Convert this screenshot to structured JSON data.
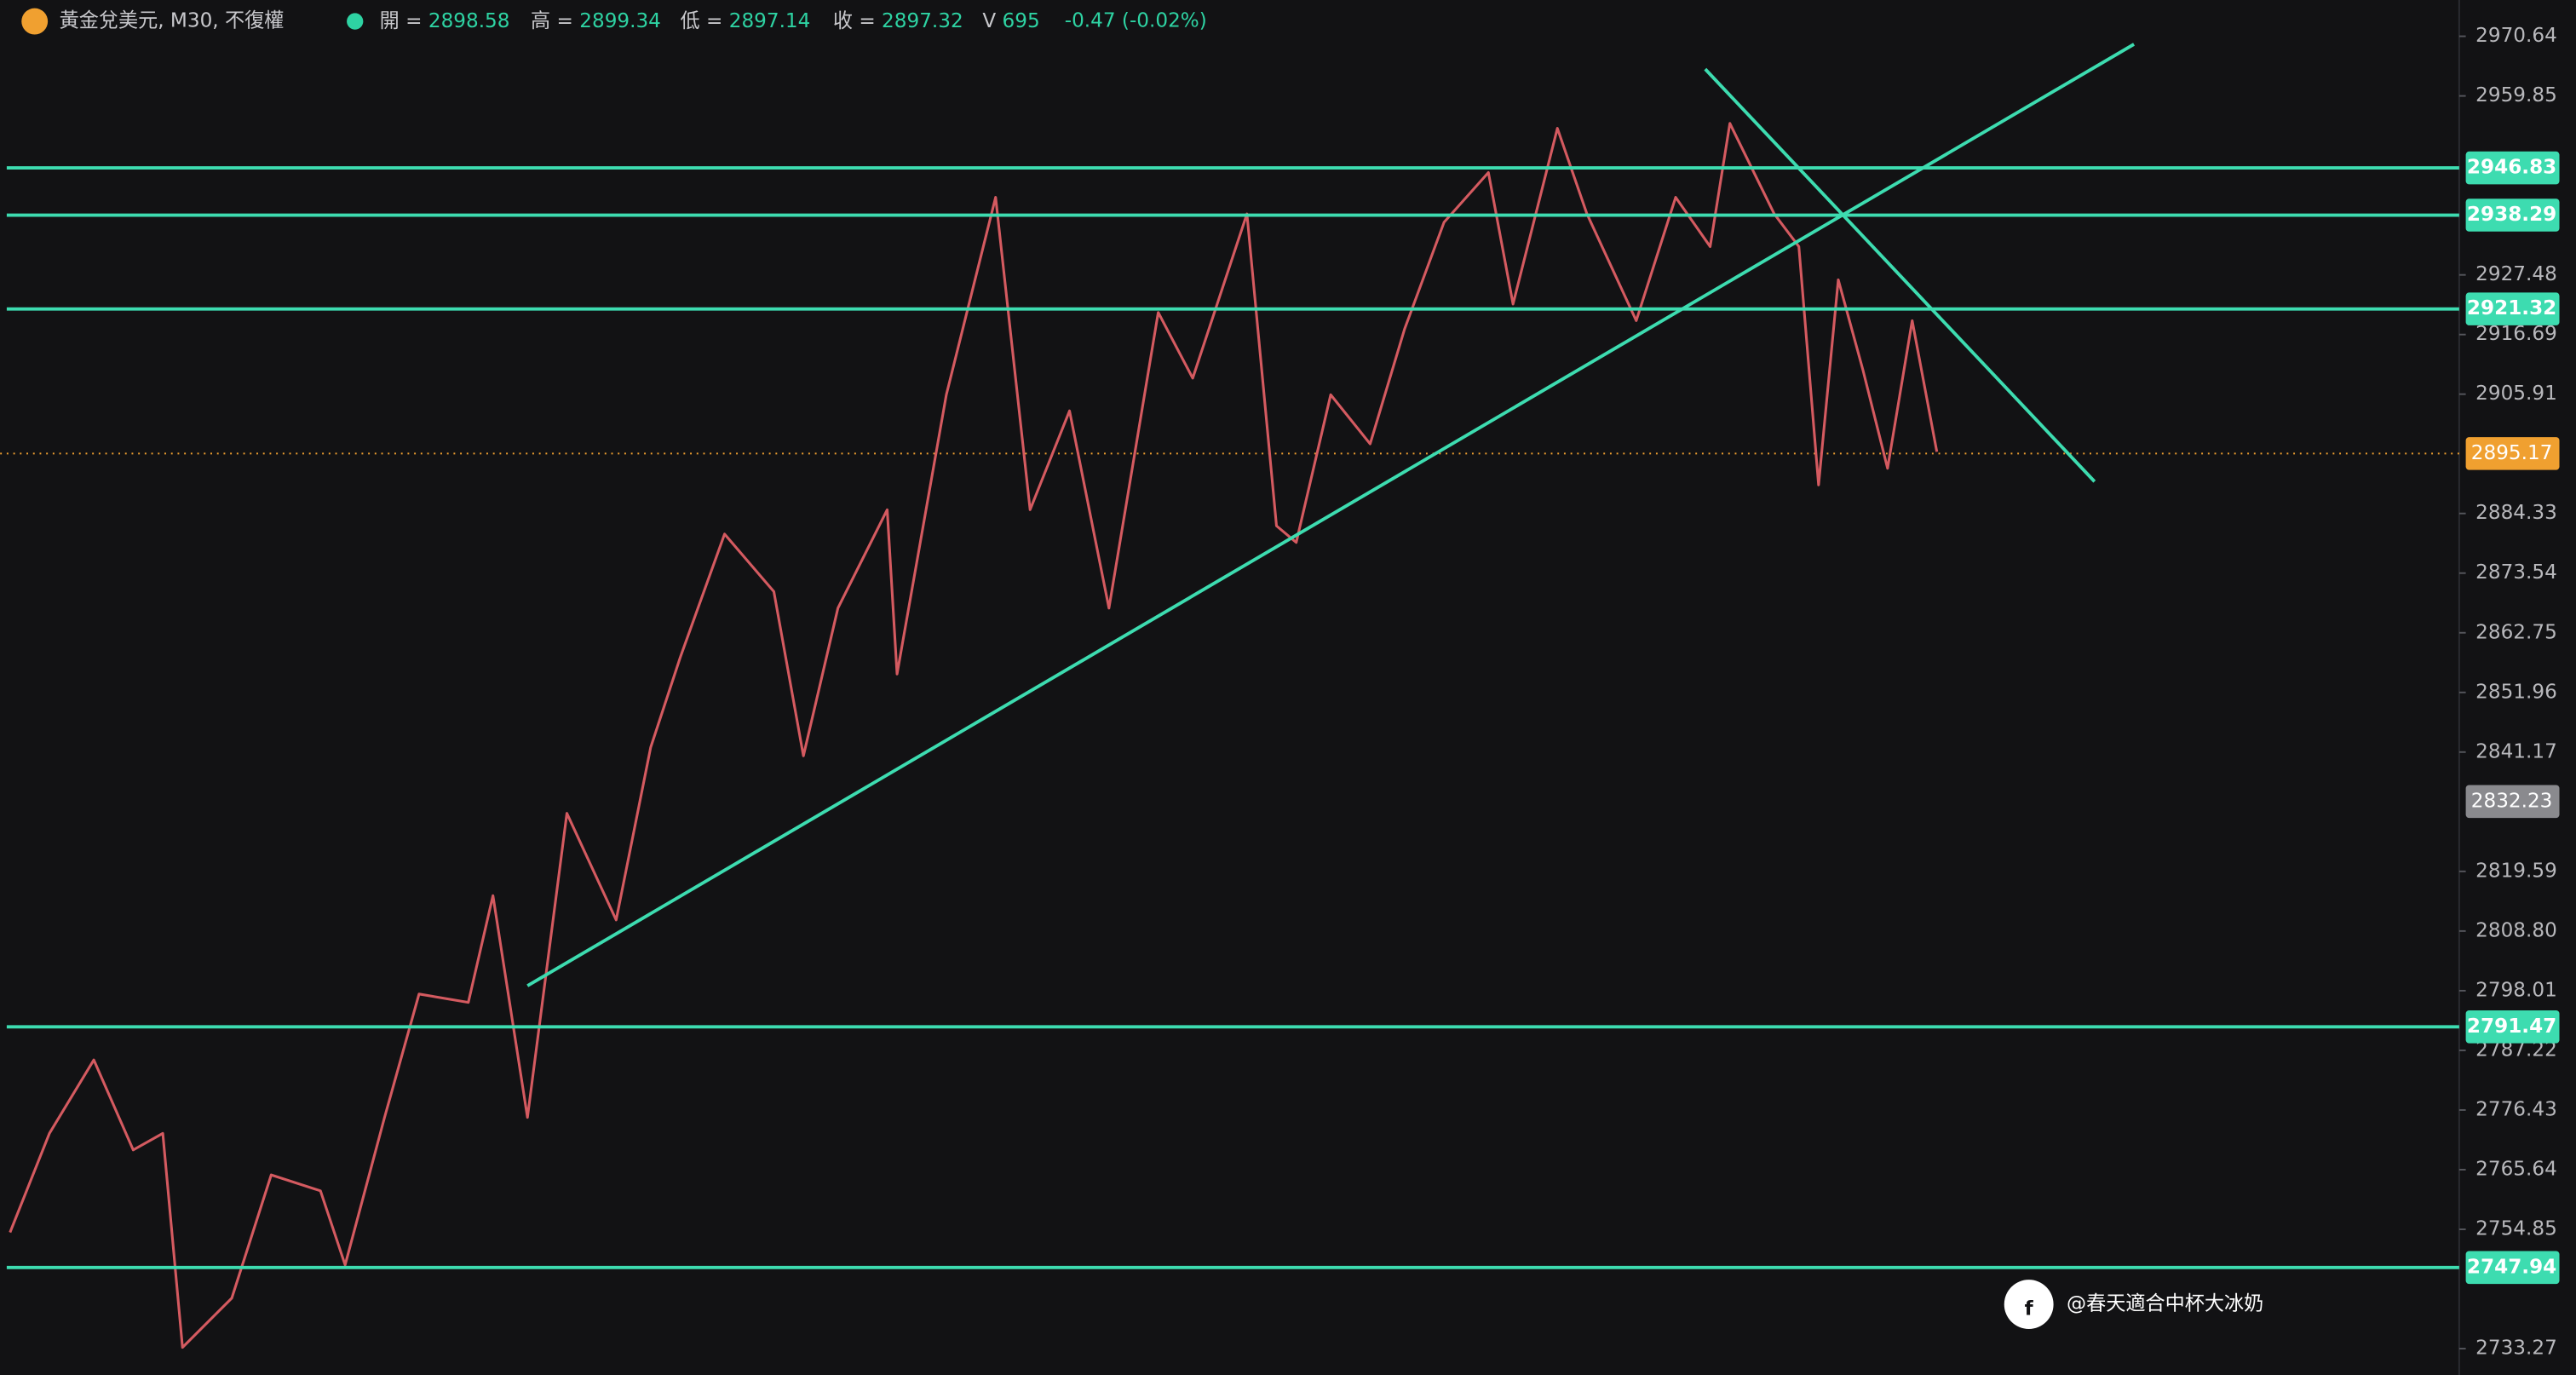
{
  "chart_data": {
    "type": "line",
    "symbol": "黃金兌美元, M30, 不復權",
    "open_label": "開 =",
    "open": 2898.58,
    "high_label": "高 =",
    "high": 2899.34,
    "low_label": "低 =",
    "low": 2897.14,
    "close_label": "收 =",
    "close": 2897.32,
    "volume_label": "V",
    "volume": 695,
    "change": "-0.47 (-0.02%)",
    "watermark": "@春天適合中杯大冰奶",
    "x": [
      2,
      10,
      19,
      27,
      33,
      37,
      47,
      55,
      65,
      70,
      78,
      85,
      95,
      100,
      107,
      115,
      125,
      132,
      138,
      147,
      157,
      163,
      170,
      180,
      182,
      192,
      202,
      209,
      217,
      225,
      235,
      242,
      253,
      259,
      263,
      270,
      278,
      285,
      293,
      302,
      307,
      316,
      322,
      332,
      340,
      347,
      351,
      360,
      365,
      369,
      373,
      378,
      383,
      388,
      393
    ],
    "series": [
      {
        "color": "#d45a60",
        "values": [
          2754.3,
          2772.2,
          2785.5,
          2769.2,
          2772.2,
          2733.5,
          2742.4,
          2764.7,
          2761.8,
          2748.4,
          2775.1,
          2797.4,
          2795.9,
          2815.2,
          2775.1,
          2830.1,
          2810.8,
          2842.0,
          2858.3,
          2880.6,
          2870.2,
          2840.5,
          2867.2,
          2885.0,
          2855.3,
          2905.8,
          2941.5,
          2885.0,
          2902.9,
          2867.2,
          2920.7,
          2908.8,
          2938.5,
          2882.1,
          2879.1,
          2905.8,
          2896.9,
          2917.7,
          2937.0,
          2946.0,
          2922.2,
          2954.0,
          2938.5,
          2919.2,
          2941.5,
          2932.6,
          2954.9,
          2938.5,
          2932.6,
          2889.5,
          2926.6,
          2910.3,
          2892.5,
          2919.2,
          2895.5
        ]
      }
    ],
    "xlim": [
      0,
      499
    ],
    "ylim": [
      2728.5,
      2977.2
    ],
    "yticks": [
      2970.64,
      2959.85,
      2927.48,
      2916.69,
      2905.91,
      2884.33,
      2873.54,
      2862.75,
      2851.96,
      2841.17,
      2819.59,
      {
        "value": 2808.8,
        "label": "2808.80"
      },
      2798.01,
      2787.22,
      2776.43,
      2765.64,
      2754.85,
      2733.27
    ],
    "levels": [
      2946.83,
      2938.29,
      2921.32,
      2791.47,
      2747.94
    ],
    "level_color": "#3ddcb0",
    "trendlines": [
      {
        "x": [
          107,
          433
        ],
        "y": [
          2798.9,
          2969.2
        ]
      },
      {
        "x": [
          346,
          425
        ],
        "y": [
          2964.7,
          2890.1
        ]
      }
    ],
    "last_price": 2895.17,
    "last_price_color": "#f0a030",
    "marker_price": 2832.23
  }
}
